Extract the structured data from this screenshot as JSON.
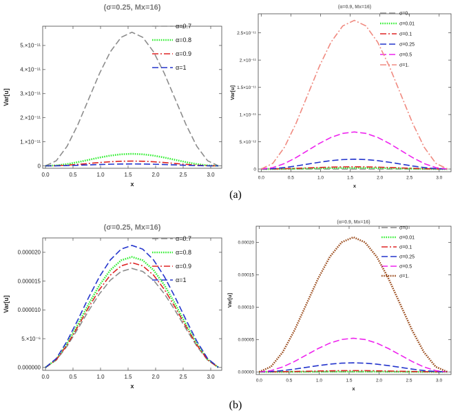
{
  "figure_labels": [
    "(a)",
    "(b)"
  ],
  "chart_data": [
    {
      "type": "line",
      "title": "(σ=0.25, Mx=16)",
      "xlabel": "x",
      "ylabel": "Var[u]",
      "xlim": [
        -0.05,
        3.2
      ],
      "ylim": [
        -1e-12,
        5.8e-11
      ],
      "xticks": [
        0,
        0.5,
        1,
        1.5,
        2,
        2.5,
        3
      ],
      "xtick_labels": [
        "0.0",
        "0.5",
        "1.0",
        "1.5",
        "2.0",
        "2.5",
        "3.0"
      ],
      "yticks": [
        0,
        1e-11,
        2e-11,
        3e-11,
        4e-11,
        5e-11
      ],
      "ytick_labels": [
        "0",
        "1.×10⁻¹¹",
        "2.×10⁻¹¹",
        "3.×10⁻¹¹",
        "4.×10⁻¹¹",
        "5.×10⁻¹¹"
      ],
      "legend_position": "top-right",
      "shape": "smooth-peak",
      "x_end": 3.14,
      "series": [
        {
          "name": "α=0.7",
          "peak": 5.55e-11,
          "color": "#8c8c8c",
          "style": "dash"
        },
        {
          "name": "α=0.8",
          "peak": 5e-12,
          "color": "#33ee33",
          "style": "dot"
        },
        {
          "name": "α=0.9",
          "peak": 2e-12,
          "color": "#dd2222",
          "style": "dashdot"
        },
        {
          "name": "α=1",
          "peak": 8e-13,
          "color": "#2233cc",
          "style": "dash"
        }
      ]
    },
    {
      "type": "line",
      "title": "(α=0.9, Mx=16)",
      "xlabel": "x",
      "ylabel": "Var[u]",
      "xlim": [
        -0.05,
        3.2
      ],
      "ylim": [
        -5e-13,
        2.85e-11
      ],
      "xticks": [
        0,
        0.5,
        1,
        1.5,
        2,
        2.5,
        3
      ],
      "xtick_labels": [
        "0.0",
        "0.5",
        "1.0",
        "1.5",
        "2.0",
        "2.5",
        "3.0"
      ],
      "yticks": [
        0,
        5e-12,
        1e-11,
        1.5e-11,
        2e-11,
        2.5e-11
      ],
      "ytick_labels": [
        "0",
        "5.×10⁻¹²",
        "1.×10⁻¹¹",
        "1.5×10⁻¹¹",
        "2.×10⁻¹¹",
        "2.5×10⁻¹¹"
      ],
      "legend_position": "top-right",
      "shape": "smooth-peak",
      "x_end": 3.14,
      "series": [
        {
          "name": "σ=0.",
          "peak": 0.0,
          "color": "#8c8c8c",
          "style": "dash"
        },
        {
          "name": "σ=0.01",
          "peak": 2e-13,
          "color": "#33ee33",
          "style": "dot"
        },
        {
          "name": "σ=0.1",
          "peak": 4e-13,
          "color": "#dd2222",
          "style": "dashdot"
        },
        {
          "name": "σ=0.25",
          "peak": 1.8e-12,
          "color": "#2233cc",
          "style": "dash"
        },
        {
          "name": "σ=0.5",
          "peak": 6.8e-12,
          "color": "#ee22ee",
          "style": "dash"
        },
        {
          "name": "σ=1.",
          "peak": 2.73e-11,
          "color": "#f08a80",
          "style": "dashdot"
        }
      ]
    },
    {
      "type": "line",
      "title": "(σ=0.25, Mx=16)",
      "xlabel": "x",
      "ylabel": "Var[u]",
      "xlim": [
        -0.05,
        3.2
      ],
      "ylim": [
        -5e-07,
        2.25e-05
      ],
      "xticks": [
        0,
        0.5,
        1,
        1.5,
        2,
        2.5,
        3
      ],
      "xtick_labels": [
        "0.0",
        "0.5",
        "1.0",
        "1.5",
        "2.0",
        "2.5",
        "3.0"
      ],
      "yticks": [
        0,
        5e-06,
        1e-05,
        1.5e-05,
        2e-05
      ],
      "ytick_labels": [
        "0.000000",
        "5.×10⁻⁶",
        "0.000010",
        "0.000015",
        "0.000020"
      ],
      "legend_position": "top-right",
      "shape": "hump",
      "x_end": 3.14,
      "series": [
        {
          "name": "α=0.7",
          "peak": 1.72e-05,
          "color": "#8c8c8c",
          "style": "dash"
        },
        {
          "name": "α=0.8",
          "peak": 1.92e-05,
          "color": "#33ee33",
          "style": "dot"
        },
        {
          "name": "α=0.9",
          "peak": 1.82e-05,
          "color": "#dd2222",
          "style": "dashdot"
        },
        {
          "name": "α=1",
          "peak": 2.12e-05,
          "color": "#2233cc",
          "style": "dash"
        }
      ]
    },
    {
      "type": "line",
      "title": "(α=0.9, Mx=16)",
      "xlabel": "x",
      "ylabel": "Var[u]",
      "xlim": [
        -0.05,
        3.2
      ],
      "ylim": [
        -4e-06,
        0.000225
      ],
      "xticks": [
        0,
        0.5,
        1,
        1.5,
        2,
        2.5,
        3
      ],
      "xtick_labels": [
        "0.0",
        "0.5",
        "1.0",
        "1.5",
        "2.0",
        "2.5",
        "3.0"
      ],
      "yticks": [
        0,
        5e-05,
        0.0001,
        0.00015,
        0.0002
      ],
      "ytick_labels": [
        "0.00000",
        "0.00005",
        "0.00010",
        "0.00015",
        "0.00020"
      ],
      "legend_position": "top-right",
      "shape": "smooth-peak",
      "x_end": 3.14,
      "series": [
        {
          "name": "σ=0",
          "peak": 0.0,
          "color": "#8c8c8c",
          "style": "dash"
        },
        {
          "name": "σ=0.01",
          "peak": 5e-07,
          "color": "#33ee33",
          "style": "dot"
        },
        {
          "name": "σ=0.1",
          "peak": 2e-06,
          "color": "#dd2222",
          "style": "dashdot"
        },
        {
          "name": "σ=0.25",
          "peak": 1.4e-05,
          "color": "#2233cc",
          "style": "dash"
        },
        {
          "name": "σ=0.5",
          "peak": 5.2e-05,
          "color": "#ee22ee",
          "style": "dash"
        },
        {
          "name": "σ=1.",
          "peak": 0.000208,
          "color": "#9a4a1a",
          "style": "dot"
        }
      ]
    }
  ]
}
